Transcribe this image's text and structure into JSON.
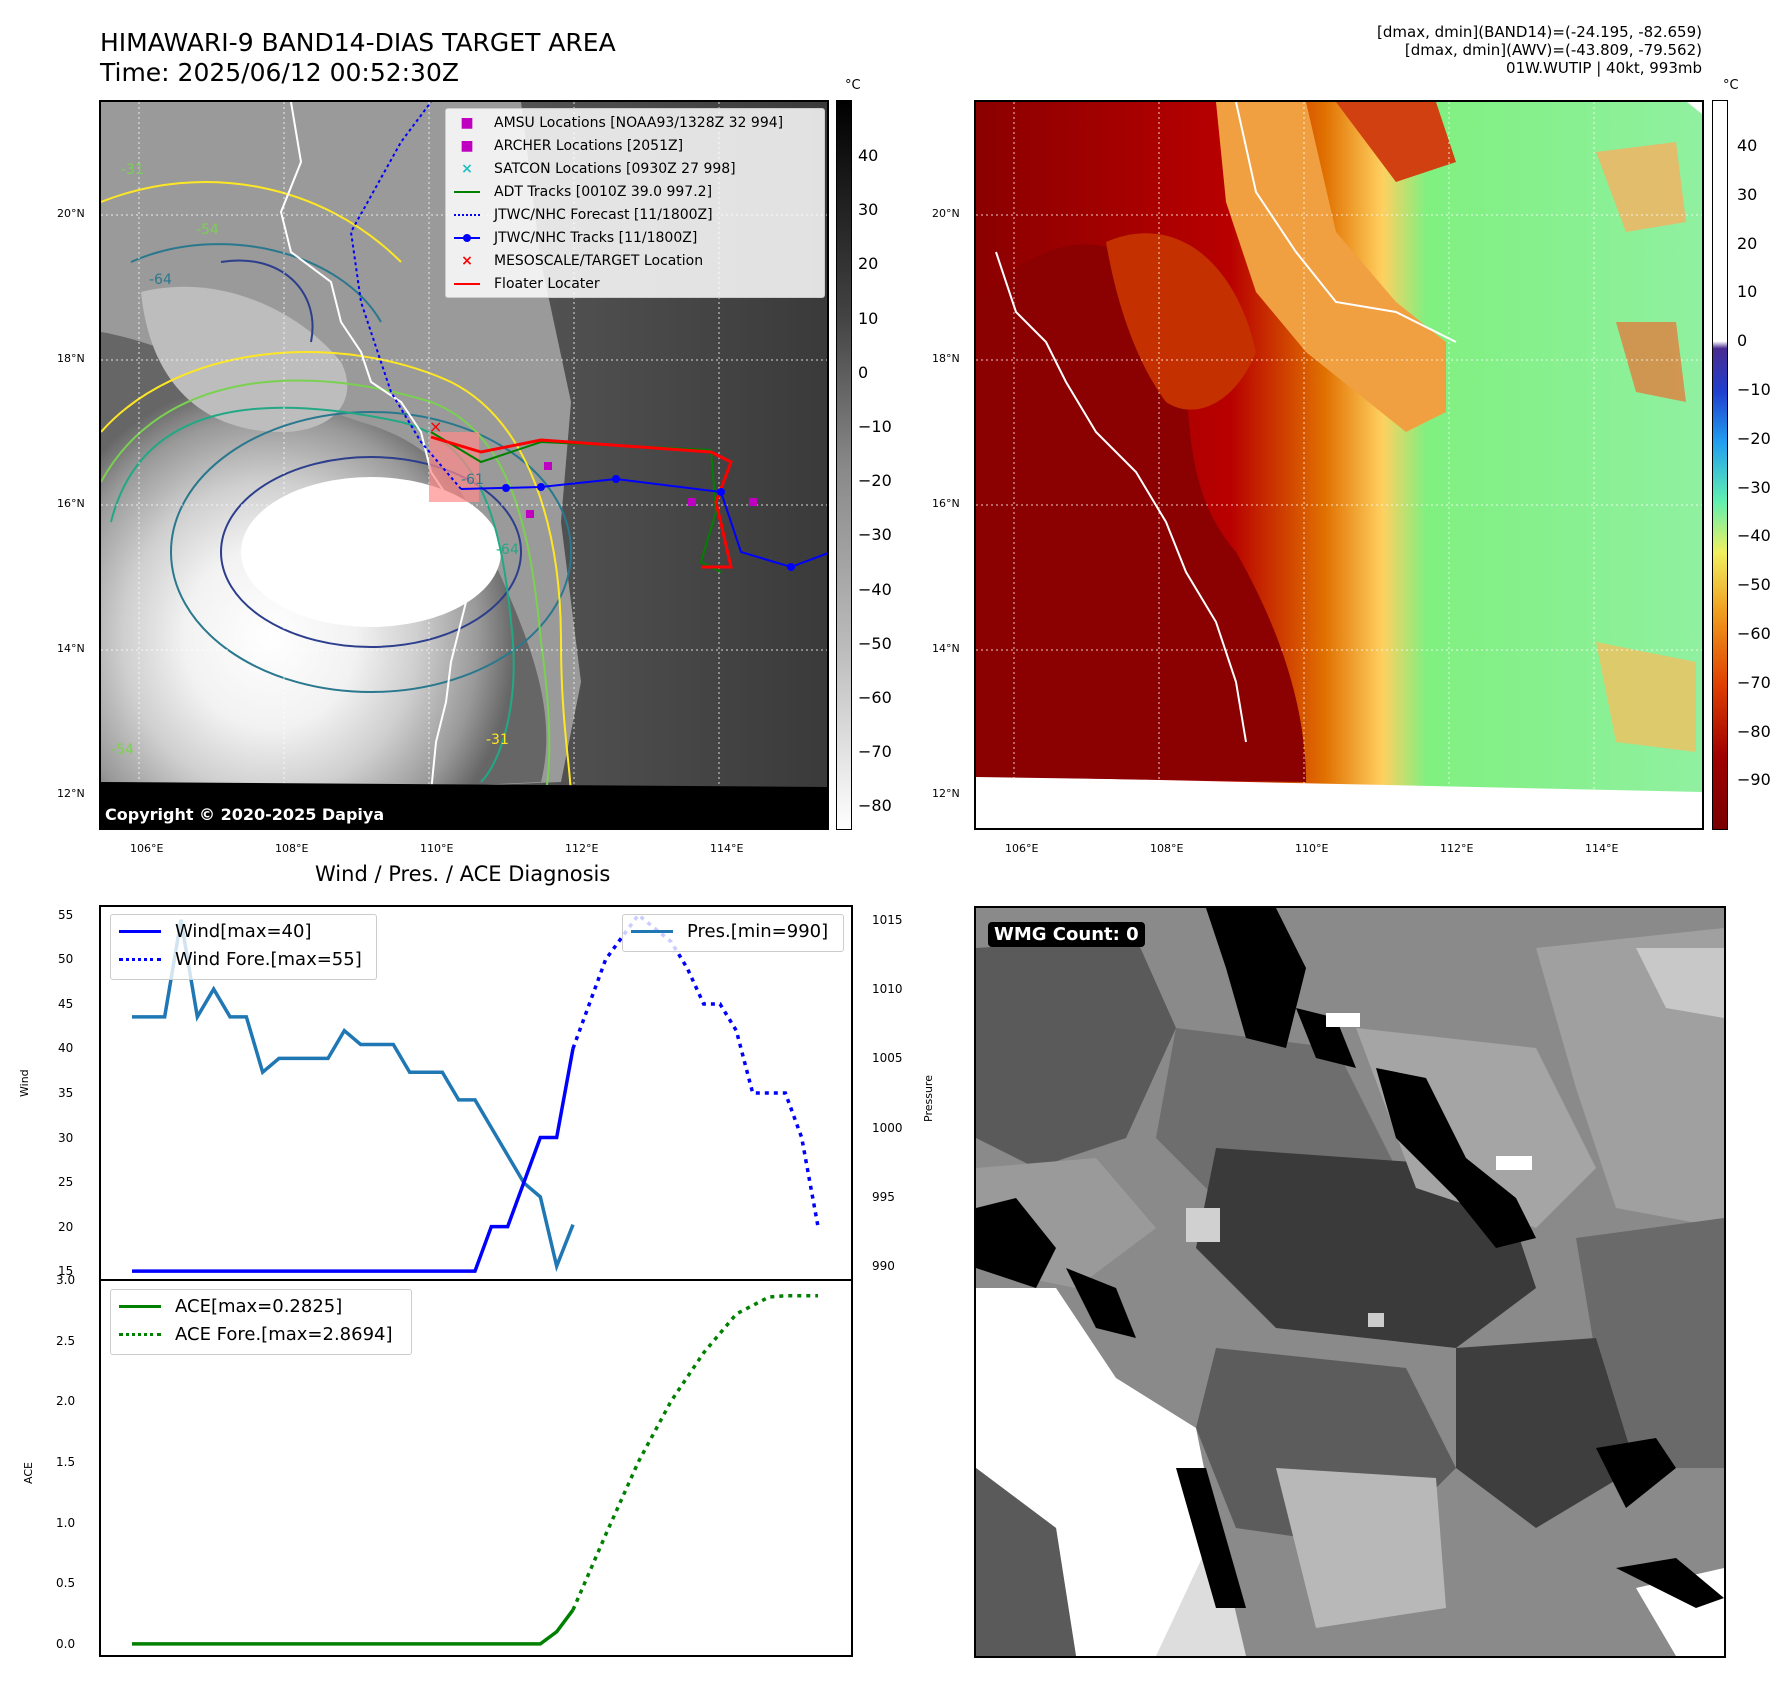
{
  "header": {
    "title_line1": "HIMAWARI-9 BAND14-DIAS TARGET AREA",
    "title_line2": "Time: 2025/06/12 00:52:30Z",
    "info_line1": "[dmax, dmin](BAND14)=(-24.195, -82.659)",
    "info_line2": "[dmax, dmin](AWV)=(-43.809, -79.562)",
    "info_line3": "01W.WUTIP | 40kt, 993mb"
  },
  "map_panel": {
    "copyright": "Copyright © 2020-2025 Dapiya",
    "lon_ticks": [
      "106°E",
      "108°E",
      "110°E",
      "112°E",
      "114°E"
    ],
    "lat_ticks": [
      "20°N",
      "18°N",
      "16°N",
      "14°N",
      "12°N"
    ],
    "contour_labels": [
      "-64",
      "-54",
      "-31",
      "-61",
      "-64",
      "-54",
      "-31"
    ],
    "legend": [
      {
        "label": "AMSU Locations [NOAA93/1328Z 32 994]",
        "color": "#c000c0",
        "marker": "square"
      },
      {
        "label": "ARCHER Locations [2051Z]",
        "color": "#c000c0",
        "marker": "square"
      },
      {
        "label": "SATCON Locations [0930Z 27 998]",
        "color": "#20c0c0",
        "marker": "x"
      },
      {
        "label": "ADT Tracks [0010Z 39.0 997.2]",
        "color": "#008000",
        "marker": "line"
      },
      {
        "label": "JTWC/NHC Forecast [11/1800Z]",
        "color": "#0000ff",
        "marker": "dotted"
      },
      {
        "label": "JTWC/NHC Tracks [11/1800Z]",
        "color": "#0000ff",
        "marker": "line-dot"
      },
      {
        "label": "MESOSCALE/TARGET Location",
        "color": "#ff0000",
        "marker": "x"
      },
      {
        "label": "Floater Locater",
        "color": "#ff0000",
        "marker": "line"
      }
    ]
  },
  "colorbar_gray": {
    "unit": "°C",
    "ticks": [
      "40",
      "30",
      "20",
      "10",
      "0",
      "−10",
      "−20",
      "−30",
      "−40",
      "−50",
      "−60",
      "−70",
      "−80"
    ]
  },
  "colorbar_color": {
    "unit": "°C",
    "ticks": [
      "40",
      "30",
      "20",
      "10",
      "0",
      "−10",
      "−20",
      "−30",
      "−40",
      "−50",
      "−60",
      "−70",
      "−80",
      "−90"
    ]
  },
  "wmg": {
    "label": "WMG Count: 0"
  },
  "colors": {
    "wind": "#0000ff",
    "pressure": "#1f77b4",
    "ace": "#008000"
  },
  "chart_data": [
    {
      "type": "line",
      "title": "Wind / Pres. / ACE Diagnosis",
      "ylabel": "Wind",
      "y2label": "Pressure",
      "ylim": [
        14,
        56
      ],
      "y2lim": [
        989,
        1016
      ],
      "yticks": [
        "55",
        "50",
        "45",
        "40",
        "35",
        "30",
        "25",
        "20",
        "15"
      ],
      "y2ticks": [
        "1015",
        "1010",
        "1005",
        "1000",
        "995",
        "990"
      ],
      "series": [
        {
          "name": "Wind[max=40]",
          "axis": "left",
          "style": "solid",
          "x": [
            0,
            21,
            22,
            23,
            24,
            25,
            26,
            27
          ],
          "values": [
            15,
            15,
            20,
            20,
            25,
            30,
            30,
            40
          ]
        },
        {
          "name": "Wind Fore.[max=55]",
          "axis": "left",
          "style": "dotted",
          "x": [
            27,
            29,
            31,
            33,
            34,
            35,
            36,
            37,
            38,
            39,
            40,
            41,
            42
          ],
          "values": [
            40,
            50,
            55,
            52,
            49,
            45,
            45,
            42,
            35,
            35,
            35,
            30,
            20
          ]
        },
        {
          "name": "Pres.[min=990]",
          "axis": "right",
          "style": "solid",
          "x": [
            0,
            2,
            3,
            4,
            5,
            6,
            7,
            8,
            9,
            10,
            11,
            12,
            13,
            14,
            15,
            16,
            17,
            18,
            19,
            20,
            21,
            22,
            23,
            24,
            25,
            26,
            27
          ],
          "values": [
            1008,
            1008,
            1015,
            1008,
            1010,
            1008,
            1008,
            1004,
            1005,
            1005,
            1005,
            1005,
            1007,
            1006,
            1006,
            1006,
            1004,
            1004,
            1004,
            1002,
            1002,
            1000,
            998,
            996,
            995,
            990,
            993
          ]
        }
      ]
    },
    {
      "type": "line",
      "ylabel": "ACE",
      "ylim": [
        -0.1,
        3.0
      ],
      "yticks": [
        "3.0",
        "2.5",
        "2.0",
        "1.5",
        "1.0",
        "0.5",
        "0.0"
      ],
      "series": [
        {
          "name": "ACE[max=0.2825]",
          "style": "solid",
          "x": [
            0,
            25,
            26,
            27
          ],
          "values": [
            0,
            0,
            0.1,
            0.28
          ]
        },
        {
          "name": "ACE Fore.[max=2.8694]",
          "style": "dotted",
          "x": [
            27,
            29,
            31,
            33,
            35,
            37,
            39,
            40,
            42
          ],
          "values": [
            0.28,
            0.9,
            1.5,
            2.0,
            2.4,
            2.72,
            2.86,
            2.87,
            2.87
          ]
        }
      ]
    }
  ]
}
